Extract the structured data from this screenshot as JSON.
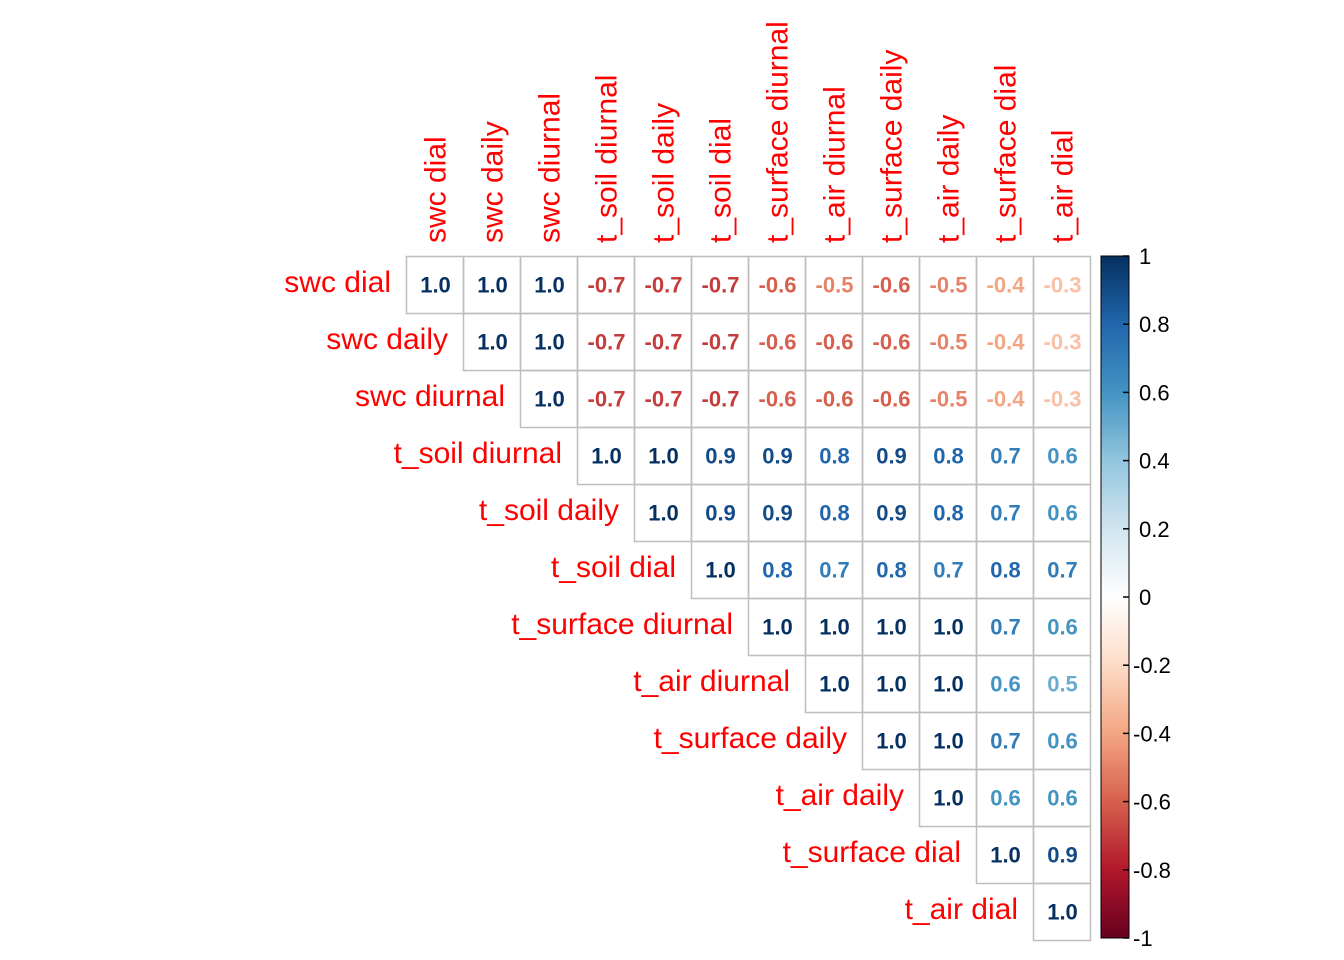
{
  "chart_data": {
    "type": "heatmap",
    "variables": [
      "swc dial",
      "swc daily",
      "swc diurnal",
      "t_soil diurnal",
      "t_soil daily",
      "t_soil dial",
      "t_surface diurnal",
      "t_air diurnal",
      "t_surface daily",
      "t_air daily",
      "t_surface dial",
      "t_air dial"
    ],
    "layout": "upper-triangle",
    "values": [
      [
        1.0,
        1.0,
        1.0,
        -0.7,
        -0.7,
        -0.7,
        -0.6,
        -0.5,
        -0.6,
        -0.5,
        -0.4,
        -0.3
      ],
      [
        null,
        1.0,
        1.0,
        -0.7,
        -0.7,
        -0.7,
        -0.6,
        -0.6,
        -0.6,
        -0.5,
        -0.4,
        -0.3
      ],
      [
        null,
        null,
        1.0,
        -0.7,
        -0.7,
        -0.7,
        -0.6,
        -0.6,
        -0.6,
        -0.5,
        -0.4,
        -0.3
      ],
      [
        null,
        null,
        null,
        1.0,
        1.0,
        0.9,
        0.9,
        0.8,
        0.9,
        0.8,
        0.7,
        0.6
      ],
      [
        null,
        null,
        null,
        null,
        1.0,
        0.9,
        0.9,
        0.8,
        0.9,
        0.8,
        0.7,
        0.6
      ],
      [
        null,
        null,
        null,
        null,
        null,
        1.0,
        0.8,
        0.7,
        0.8,
        0.7,
        0.8,
        0.7
      ],
      [
        null,
        null,
        null,
        null,
        null,
        null,
        1.0,
        1.0,
        1.0,
        1.0,
        0.7,
        0.6
      ],
      [
        null,
        null,
        null,
        null,
        null,
        null,
        null,
        1.0,
        1.0,
        1.0,
        0.6,
        0.5
      ],
      [
        null,
        null,
        null,
        null,
        null,
        null,
        null,
        null,
        1.0,
        1.0,
        0.7,
        0.6
      ],
      [
        null,
        null,
        null,
        null,
        null,
        null,
        null,
        null,
        null,
        1.0,
        0.6,
        0.6
      ],
      [
        null,
        null,
        null,
        null,
        null,
        null,
        null,
        null,
        null,
        null,
        1.0,
        0.9
      ],
      [
        null,
        null,
        null,
        null,
        null,
        null,
        null,
        null,
        null,
        null,
        null,
        1.0
      ]
    ],
    "colorbar": {
      "range": [
        -1,
        1
      ],
      "ticks": [
        "1",
        "0.8",
        "0.6",
        "0.4",
        "0.2",
        "0",
        "-0.2",
        "-0.4",
        "-0.6",
        "-0.8",
        "-1"
      ],
      "colors": [
        "#67001F",
        "#B2182B",
        "#D6604D",
        "#F4A582",
        "#FDDBC7",
        "#FFFFFF",
        "#D1E5F0",
        "#92C5DE",
        "#4393C3",
        "#2166AC",
        "#053061"
      ]
    },
    "label_color": "#ff0000",
    "grid_color": "#bebebe"
  }
}
